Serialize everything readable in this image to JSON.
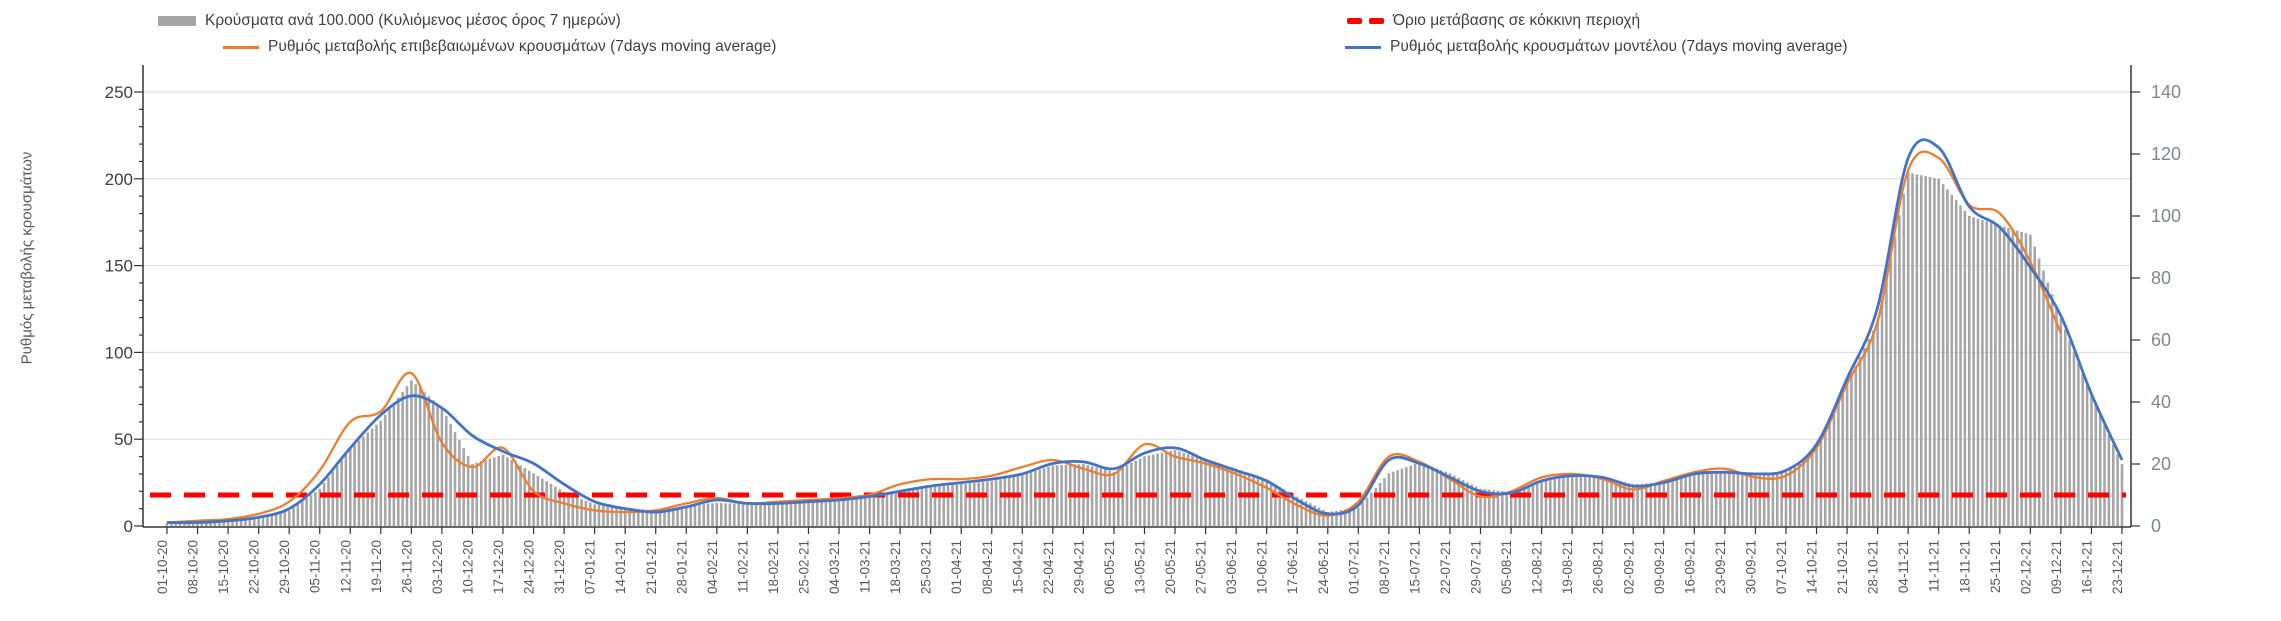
{
  "chart_data": {
    "type": "combo",
    "title": "",
    "sampling_note": "values are weekly anchors read at each x tick; bars are daily in the original (rendered by interpolation)",
    "left_axis": {
      "title": "Ρυθμός μεταβολής κρουσμάτων",
      "min": 0,
      "max": 250,
      "step": 50,
      "tick_labels": [
        "0",
        "50",
        "100",
        "150",
        "200",
        "250"
      ]
    },
    "right_axis": {
      "title": "",
      "min": 0,
      "max": 140,
      "step": 20,
      "tick_labels": [
        "0",
        "20",
        "40",
        "60",
        "80",
        "100",
        "120",
        "140"
      ]
    },
    "grid": "horizontal, at left-axis steps",
    "legend_position": "top, two columns",
    "x_tick_labels": [
      "01-10-20",
      "08-10-20",
      "15-10-20",
      "22-10-20",
      "29-10-20",
      "05-11-20",
      "12-11-20",
      "19-11-20",
      "26-11-20",
      "03-12-20",
      "10-12-20",
      "17-12-20",
      "24-12-20",
      "31-12-20",
      "07-01-21",
      "14-01-21",
      "21-01-21",
      "28-01-21",
      "04-02-21",
      "11-02-21",
      "18-02-21",
      "25-02-21",
      "04-03-21",
      "11-03-21",
      "18-03-21",
      "25-03-21",
      "01-04-21",
      "08-04-21",
      "15-04-21",
      "22-04-21",
      "29-04-21",
      "06-05-21",
      "13-05-21",
      "20-05-21",
      "27-05-21",
      "03-06-21",
      "10-06-21",
      "17-06-21",
      "24-06-21",
      "01-07-21",
      "08-07-21",
      "15-07-21",
      "22-07-21",
      "29-07-21",
      "05-08-21",
      "12-08-21",
      "19-08-21",
      "26-08-21",
      "02-09-21",
      "09-09-21",
      "16-09-21",
      "23-09-21",
      "30-09-21",
      "07-10-21",
      "14-10-21",
      "21-10-21",
      "28-10-21",
      "04-11-21",
      "11-11-21",
      "18-11-21",
      "25-11-21",
      "02-12-21",
      "09-12-21",
      "16-12-21",
      "23-12-21"
    ],
    "series": [
      {
        "name": "Κρούσματα ανά 100.000 (Κυλιόμενος μέσος όρος 7 ημερών)",
        "type": "bar",
        "axis": "right",
        "color": "#A6A6A6",
        "values": [
          1,
          1.5,
          2,
          3,
          5,
          12,
          25,
          34,
          47,
          38,
          20,
          23,
          17,
          11,
          7,
          6,
          5,
          6.5,
          7.5,
          7,
          8,
          8.5,
          9,
          10,
          11,
          12.5,
          13.5,
          14.5,
          16.5,
          19.5,
          20,
          17.5,
          22.5,
          24.5,
          21.5,
          18.5,
          15,
          9.5,
          4.5,
          6,
          17,
          20.5,
          17,
          12,
          11,
          15,
          16.5,
          16,
          13.5,
          14,
          16.5,
          17.5,
          17,
          17.5,
          25,
          46,
          66,
          114,
          112,
          100,
          97,
          94,
          67,
          42,
          20
        ]
      },
      {
        "name": "Ρυθμός μεταβολής επιβεβαιωμένων κρουσμάτων (7days moving average)",
        "type": "line",
        "axis": "left",
        "color": "#ED7D31",
        "values": [
          2,
          3,
          4,
          7,
          14,
          32,
          60,
          66,
          88,
          48,
          34,
          45,
          20,
          13,
          9,
          8,
          9,
          13,
          16,
          13,
          14,
          15,
          16,
          18,
          24,
          27,
          27,
          29,
          34,
          38,
          33,
          30,
          47,
          40,
          36,
          30,
          22,
          12,
          6,
          14,
          40,
          37,
          27,
          17,
          20,
          28,
          30,
          27,
          21,
          26,
          31,
          33,
          28,
          29,
          45,
          82,
          118,
          205,
          212,
          185,
          180,
          152,
          111,
          null,
          null
        ]
      },
      {
        "name": "Όριο μετάβασης σε κόκκινη περιοχή",
        "type": "threshold-line",
        "axis": "right",
        "color": "#FF0000",
        "value": 10
      },
      {
        "name": "Ρυθμός μεταβολής κρουσμάτων μοντέλου (7days moving average)",
        "type": "line",
        "axis": "left",
        "color": "#4472C4",
        "values": [
          2,
          2,
          3,
          5,
          10,
          24,
          45,
          64,
          75,
          68,
          52,
          43,
          36,
          24,
          14,
          10,
          8,
          11,
          15,
          13,
          13,
          14,
          15,
          17,
          20,
          23,
          25,
          27,
          30,
          36,
          37,
          33,
          42,
          45,
          38,
          32,
          26,
          15,
          7,
          12,
          38,
          36,
          28,
          20,
          19,
          26,
          29,
          28,
          23,
          25,
          30,
          31,
          30,
          32,
          47,
          85,
          126,
          212,
          218,
          184,
          172,
          149,
          121,
          76,
          38
        ]
      }
    ]
  }
}
